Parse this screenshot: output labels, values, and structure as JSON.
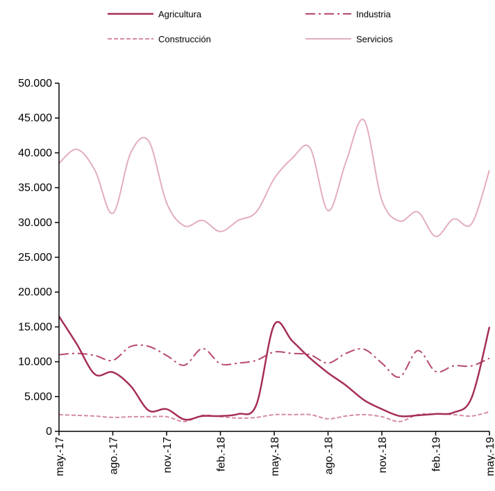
{
  "chart_data": {
    "type": "line",
    "title": "",
    "xlabel": "",
    "ylabel": "",
    "ylim": [
      0,
      50000
    ],
    "yticks": [
      0,
      5000,
      10000,
      15000,
      20000,
      25000,
      30000,
      35000,
      40000,
      45000,
      50000
    ],
    "ytick_labels": [
      "0",
      "5.000",
      "10.000",
      "15.000",
      "20.000",
      "25.000",
      "30.000",
      "35.000",
      "40.000",
      "45.000",
      "50.000"
    ],
    "x": [
      "may.-17",
      "jun.-17",
      "jul.-17",
      "ago.-17",
      "sep.-17",
      "oct.-17",
      "nov.-17",
      "dic.-17",
      "ene.-18",
      "feb.-18",
      "mar.-18",
      "abr.-18",
      "may.-18",
      "jun.-18",
      "jul.-18",
      "ago.-18",
      "sep.-18",
      "oct.-18",
      "nov.-18",
      "dic.-18",
      "ene.-19",
      "feb.-19",
      "mar.-19",
      "abr.-19",
      "may.-19"
    ],
    "xtick_indices": [
      0,
      3,
      6,
      9,
      12,
      15,
      18,
      21,
      24
    ],
    "xtick_labels": [
      "may.-17",
      "ago.-17",
      "nov.-17",
      "feb.-18",
      "may.-18",
      "ago.-18",
      "nov.-18",
      "feb.-19",
      "may.-19"
    ],
    "grid": false,
    "legend_position": "top",
    "series": [
      {
        "name": "Agricultura",
        "style": "solid",
        "color": "#a62d56",
        "values": [
          16500,
          12500,
          8200,
          8500,
          6500,
          3000,
          3200,
          1700,
          2200,
          2200,
          2500,
          3800,
          15300,
          13000,
          10500,
          8400,
          6600,
          4500,
          3200,
          2200,
          2300,
          2500,
          2700,
          4800,
          15000
        ]
      },
      {
        "name": "Industria",
        "style": "dashdot",
        "color": "#b8476b",
        "values": [
          11000,
          11200,
          10900,
          10200,
          12200,
          12200,
          10900,
          9500,
          11900,
          9700,
          9800,
          10200,
          11400,
          11200,
          11000,
          9800,
          11200,
          11800,
          9800,
          7800,
          11600,
          8600,
          9400,
          9400,
          10500
        ]
      },
      {
        "name": "Construcción",
        "style": "dashed",
        "color": "#d58aa3",
        "values": [
          2400,
          2300,
          2200,
          2000,
          2100,
          2100,
          2100,
          1400,
          2300,
          2100,
          1900,
          2000,
          2400,
          2400,
          2400,
          1800,
          2200,
          2400,
          2100,
          1400,
          2400,
          2500,
          2400,
          2200,
          2800
        ]
      },
      {
        "name": "Servicios",
        "style": "solid",
        "color": "#e2adbd",
        "values": [
          38500,
          40500,
          37500,
          31300,
          40000,
          41700,
          32800,
          29500,
          30300,
          28700,
          30300,
          31500,
          36300,
          39200,
          40700,
          31700,
          38700,
          44700,
          33200,
          30200,
          31500,
          28000,
          30500,
          29800,
          37500
        ]
      }
    ]
  }
}
